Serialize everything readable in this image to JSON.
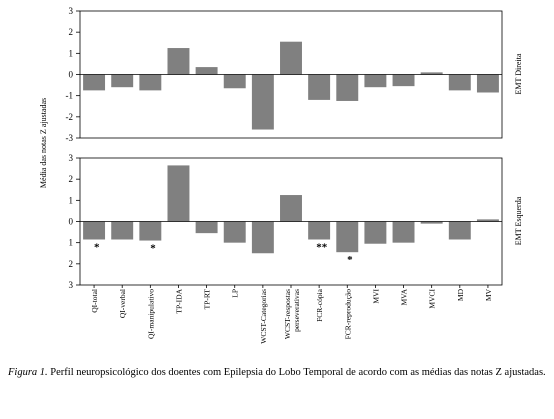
{
  "chart_data": [
    {
      "type": "bar",
      "panel_label": "EMT Direita",
      "ylabel": "Média das notas Z ajustadas",
      "ylim": [
        -3,
        3
      ],
      "yticks": [
        "3",
        "2",
        "1",
        "0",
        "-1",
        "-2",
        "-3"
      ],
      "values": [
        -0.75,
        -0.6,
        -0.75,
        1.25,
        0.35,
        -0.65,
        -2.6,
        1.55,
        -1.2,
        -1.25,
        -0.6,
        -0.55,
        0.1,
        -0.75,
        -0.85
      ],
      "categories": [
        "QI-total",
        "QI-verbal",
        "QI-manipulativo",
        "TP-IDA",
        "TP-RT",
        "LP",
        "WCST-Categorias",
        "WCST-respostas perseverativas",
        "FCR-cópia",
        "FCR-reprodução",
        "MVI",
        "MVA",
        "MVCI",
        "MD",
        "MV"
      ]
    },
    {
      "type": "bar",
      "panel_label": "EMT Esquerda",
      "ylim": [
        -3,
        3
      ],
      "yticks": [
        "3",
        "2",
        "1",
        "0",
        "1",
        "2",
        "3"
      ],
      "values": [
        -0.85,
        -0.85,
        -0.9,
        2.65,
        -0.55,
        -1.0,
        -1.5,
        1.25,
        -0.85,
        -1.45,
        -1.05,
        -1.0,
        -0.1,
        -0.85,
        0.1
      ],
      "annotations": [
        {
          "category": "QI-total",
          "text": "*"
        },
        {
          "category": "QI-manipulativo",
          "text": "*"
        },
        {
          "category": "FCR-cópia",
          "text": "**"
        },
        {
          "category": "FCR-reprodução",
          "text": "*"
        }
      ]
    }
  ],
  "categories": [
    "QI-total",
    "QI-verbal",
    "QI-manipulativo",
    "TP-IDA",
    "TP-RT",
    "LP",
    "WCST-Categorias",
    "WCST-respostas perseverativas",
    "FCR-cópia",
    "FCR-reprodução",
    "MVI",
    "MVA",
    "MVCI",
    "MD",
    "MV"
  ],
  "colors": {
    "bar": "#808080"
  },
  "caption": {
    "figure_number": "Figura 1.",
    "text": " Perfil neuropsicológico dos doentes com Epilepsia do Lobo Temporal de acordo com as médias das notas Z ajustadas."
  }
}
